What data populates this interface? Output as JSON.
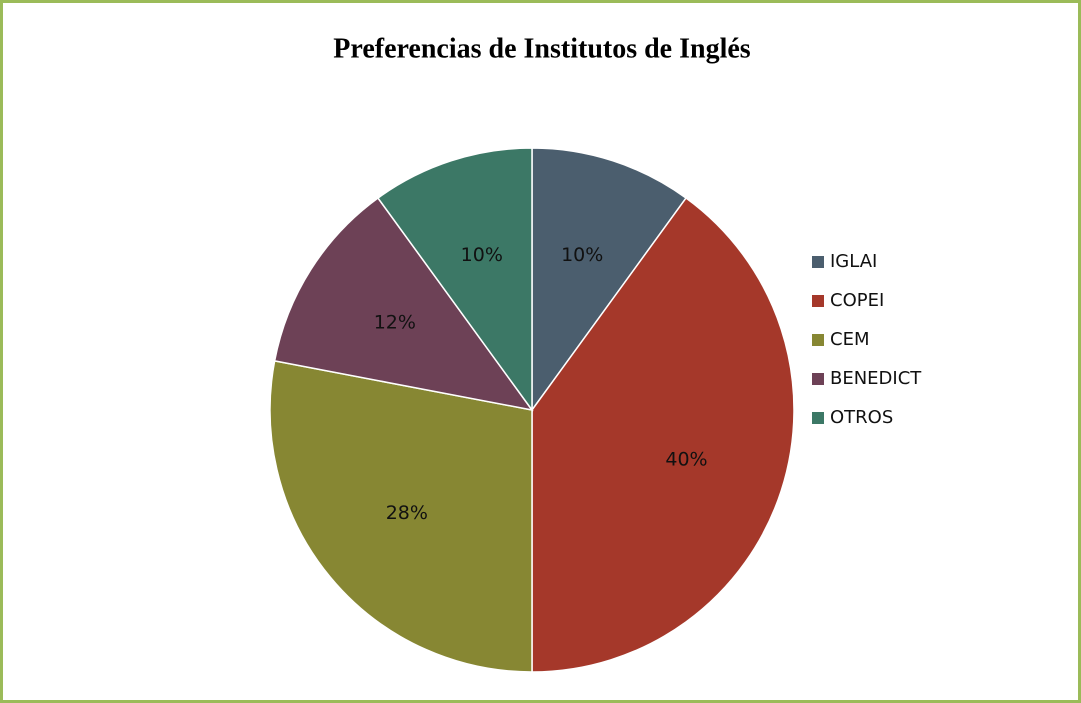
{
  "chart_data": {
    "type": "pie",
    "title": "Preferencias de Institutos de Inglés",
    "categories": [
      "IGLAI",
      "COPEI",
      "CEM",
      "BENEDICT",
      "OTROS"
    ],
    "values": [
      10,
      40,
      28,
      12,
      10
    ],
    "value_labels": [
      "10%",
      "40%",
      "28%",
      "12%",
      "10%"
    ],
    "colors": [
      "#4b5e6e",
      "#a5382a",
      "#878733",
      "#6d4156",
      "#3c7866"
    ],
    "legend": "right"
  }
}
